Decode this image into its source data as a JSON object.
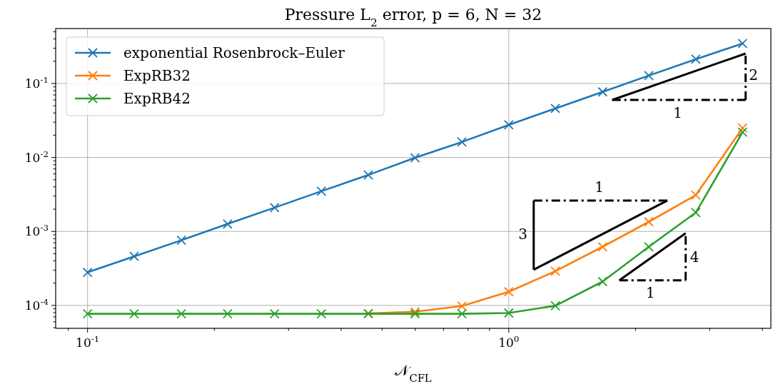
{
  "chart_data": {
    "type": "line",
    "title": "Pressure L$_{2}$ error, p = 6, N = 32",
    "xlabel": "𝒩$_{CFL}$",
    "x": [
      0.1,
      0.129,
      0.167,
      0.215,
      0.278,
      0.359,
      0.464,
      0.599,
      0.774,
      1.0,
      1.29,
      1.67,
      2.15,
      2.78,
      3.59
    ],
    "series": [
      {
        "name": "exponential Rosenbrock–Euler",
        "color": "#1f77b4",
        "values": [
          0.00028,
          0.00046,
          0.00076,
          0.00126,
          0.0021,
          0.0035,
          0.0058,
          0.0099,
          0.0162,
          0.0276,
          0.046,
          0.077,
          0.128,
          0.213,
          0.347
        ]
      },
      {
        "name": "ExpRB32",
        "color": "#ff7f0e",
        "values": [
          null,
          null,
          null,
          null,
          null,
          null,
          7.8e-05,
          8.2e-05,
          9.8e-05,
          0.000153,
          0.00029,
          0.00062,
          0.00135,
          0.0031,
          0.025
        ]
      },
      {
        "name": "ExpRB42",
        "color": "#2ca02c",
        "values": [
          7.7e-05,
          7.7e-05,
          7.7e-05,
          7.7e-05,
          7.7e-05,
          7.7e-05,
          7.7e-05,
          7.7e-05,
          7.7e-05,
          7.9e-05,
          9.9e-05,
          0.00021,
          0.00062,
          0.0018,
          0.022
        ]
      }
    ],
    "log": "xy",
    "xlim": [
      0.084,
      4.19
    ],
    "ylim": [
      4.9e-05,
      0.553
    ],
    "xticks": [
      {
        "value": 0.1,
        "label": "10$^{-1}$"
      },
      {
        "value": 0.2,
        "label": null
      },
      {
        "value": 0.3,
        "label": null
      },
      {
        "value": 0.4,
        "label": null
      },
      {
        "value": 0.5,
        "label": null
      },
      {
        "value": 0.6,
        "label": null
      },
      {
        "value": 0.7,
        "label": null
      },
      {
        "value": 0.8,
        "label": null
      },
      {
        "value": 0.9,
        "label": null
      },
      {
        "value": 1,
        "label": "10$^{0}$"
      },
      {
        "value": 2,
        "label": null
      },
      {
        "value": 3,
        "label": null
      },
      {
        "value": 4,
        "label": null
      },
      {
        "value": 0.09,
        "label": null
      }
    ],
    "yticks": [
      {
        "value": 0.0001,
        "label": "10$^{-4}$"
      },
      {
        "value": 0.001,
        "label": "10$^{-3}$"
      },
      {
        "value": 0.01,
        "label": "10$^{-2}$"
      },
      {
        "value": 0.1,
        "label": "10$^{-1}$"
      },
      {
        "value": 5e-05,
        "label": null
      },
      {
        "value": 6e-05,
        "label": null
      },
      {
        "value": 7e-05,
        "label": null
      },
      {
        "value": 8e-05,
        "label": null
      },
      {
        "value": 9e-05,
        "label": null
      },
      {
        "value": 0.0002,
        "label": null
      },
      {
        "value": 0.0003,
        "label": null
      },
      {
        "value": 0.0004,
        "label": null
      },
      {
        "value": 0.0005,
        "label": null
      },
      {
        "value": 0.0006,
        "label": null
      },
      {
        "value": 0.0007,
        "label": null
      },
      {
        "value": 0.0008,
        "label": null
      },
      {
        "value": 0.0009,
        "label": null
      },
      {
        "value": 0.002,
        "label": null
      },
      {
        "value": 0.003,
        "label": null
      },
      {
        "value": 0.004,
        "label": null
      },
      {
        "value": 0.005,
        "label": null
      },
      {
        "value": 0.006,
        "label": null
      },
      {
        "value": 0.007,
        "label": null
      },
      {
        "value": 0.008,
        "label": null
      },
      {
        "value": 0.009,
        "label": null
      },
      {
        "value": 0.02,
        "label": null
      },
      {
        "value": 0.03,
        "label": null
      },
      {
        "value": 0.04,
        "label": null
      },
      {
        "value": 0.05,
        "label": null
      },
      {
        "value": 0.06,
        "label": null
      },
      {
        "value": 0.07,
        "label": null
      },
      {
        "value": 0.08,
        "label": null
      },
      {
        "value": 0.09,
        "label": null
      },
      {
        "value": 0.2,
        "label": null
      },
      {
        "value": 0.3,
        "label": null
      },
      {
        "value": 0.4,
        "label": null
      },
      {
        "value": 0.5,
        "label": null
      }
    ],
    "grid": true,
    "legend": "top left",
    "marker": "cross",
    "line_style": "solid",
    "annotations": [
      "1",
      "2",
      "1",
      "3",
      "4",
      "1"
    ]
  }
}
